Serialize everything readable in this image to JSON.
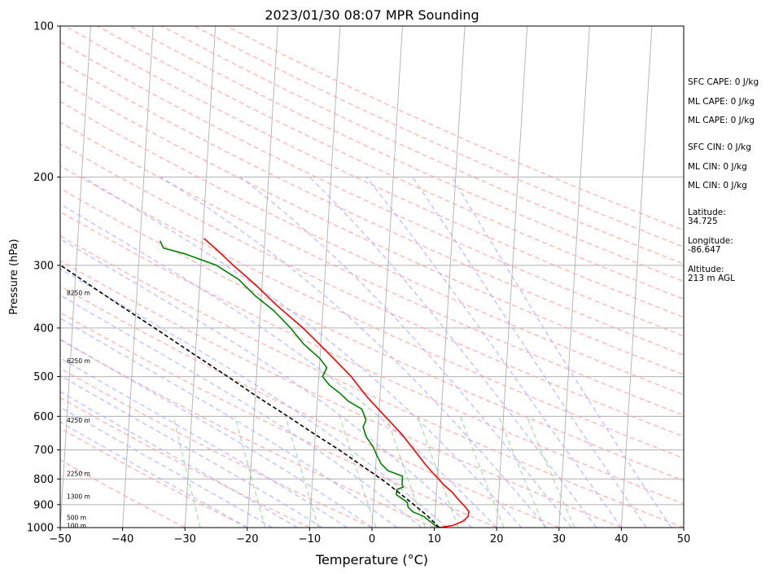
{
  "chart_data": {
    "type": "line",
    "subtype": "skew-T log-P sounding",
    "title": "2023/01/30 08:07 MPR Sounding",
    "xlabel": "Temperature (°C)",
    "ylabel": "Pressure (hPa)",
    "xlim": [
      -50,
      50
    ],
    "ylim": [
      1000,
      100
    ],
    "y_scale": "log",
    "grid": true,
    "x_ticks": [
      -50,
      -40,
      -30,
      -20,
      -10,
      0,
      10,
      20,
      30,
      40,
      50
    ],
    "y_ticks": [
      100,
      200,
      300,
      400,
      500,
      600,
      700,
      800,
      900,
      1000
    ],
    "height_labels": [
      {
        "label": "100 m",
        "p": 990
      },
      {
        "label": "500 m",
        "p": 955
      },
      {
        "label": "1300 m",
        "p": 866
      },
      {
        "label": "2250 m",
        "p": 780
      },
      {
        "label": "4250 m",
        "p": 610
      },
      {
        "label": "6250 m",
        "p": 465
      },
      {
        "label": "8250 m",
        "p": 340
      }
    ],
    "series": [
      {
        "kind": "temperature",
        "color": "#ff0000",
        "points": [
          [
            1000,
            10.8
          ],
          [
            990,
            13.0
          ],
          [
            970,
            14.6
          ],
          [
            950,
            15.3
          ],
          [
            930,
            15.4
          ],
          [
            910,
            14.8
          ],
          [
            880,
            13.6
          ],
          [
            850,
            12.5
          ],
          [
            820,
            11.0
          ],
          [
            800,
            10.2
          ],
          [
            780,
            9.3
          ],
          [
            750,
            8.0
          ],
          [
            700,
            6.0
          ],
          [
            650,
            3.8
          ],
          [
            600,
            1.0
          ],
          [
            550,
            -2.0
          ],
          [
            500,
            -4.8
          ],
          [
            450,
            -8.6
          ],
          [
            400,
            -13.0
          ],
          [
            360,
            -17.5
          ],
          [
            330,
            -20.8
          ],
          [
            300,
            -24.8
          ],
          [
            280,
            -27.5
          ],
          [
            265,
            -29.8
          ]
        ]
      },
      {
        "kind": "dewpoint",
        "color": "#008000",
        "points": [
          [
            1000,
            10.6
          ],
          [
            975,
            9.4
          ],
          [
            950,
            8.2
          ],
          [
            930,
            6.4
          ],
          [
            910,
            5.6
          ],
          [
            890,
            5.4
          ],
          [
            860,
            3.6
          ],
          [
            840,
            3.6
          ],
          [
            830,
            4.6
          ],
          [
            820,
            4.4
          ],
          [
            790,
            4.4
          ],
          [
            770,
            2.0
          ],
          [
            745,
            0.8
          ],
          [
            715,
            0.0
          ],
          [
            690,
            -0.6
          ],
          [
            660,
            -1.8
          ],
          [
            630,
            -2.4
          ],
          [
            610,
            -2.0
          ],
          [
            580,
            -2.8
          ],
          [
            560,
            -5.0
          ],
          [
            540,
            -6.4
          ],
          [
            520,
            -8.2
          ],
          [
            500,
            -9.4
          ],
          [
            480,
            -8.8
          ],
          [
            460,
            -10.0
          ],
          [
            430,
            -12.8
          ],
          [
            400,
            -15.0
          ],
          [
            370,
            -17.8
          ],
          [
            345,
            -21.0
          ],
          [
            320,
            -23.8
          ],
          [
            300,
            -27.5
          ],
          [
            285,
            -32.5
          ],
          [
            277,
            -36.2
          ],
          [
            268,
            -36.8
          ]
        ]
      },
      {
        "kind": "parcel",
        "color": "#000000",
        "dashed": true,
        "points": [
          [
            1000,
            10.8
          ],
          [
            950,
            8.9
          ],
          [
            900,
            6.5
          ],
          [
            850,
            3.9
          ],
          [
            800,
            1.0
          ],
          [
            750,
            -2.4
          ],
          [
            700,
            -6.0
          ],
          [
            650,
            -10.2
          ],
          [
            600,
            -14.6
          ],
          [
            550,
            -19.5
          ],
          [
            500,
            -24.6
          ],
          [
            450,
            -30.4
          ],
          [
            400,
            -36.8
          ],
          [
            350,
            -44.2
          ],
          [
            300,
            -52.5
          ],
          [
            268,
            -58.6
          ]
        ]
      }
    ],
    "background_lines": {
      "isotherm_color": "#b0b0b0",
      "dry_adiabat_color": "#ff9f9f",
      "moist_adiabat_color": "#a7a7ff",
      "mixing_ratio_color": "#8ed08e"
    }
  },
  "indices": {
    "sfc_cape": "SFC CAPE: 0 J/kg",
    "ml_cape_1": "ML CAPE: 0 J/kg",
    "ml_cape_2": "ML CAPE: 0 J/kg",
    "sfc_cin": "SFC CIN: 0 J/kg",
    "ml_cin_1": "ML CIN: 0 J/kg",
    "ml_cin_2": "ML CIN: 0 J/kg",
    "latitude_label": "Latitude:",
    "latitude_value": "34.725",
    "longitude_label": "Longitude:",
    "longitude_value": "-86.647",
    "altitude_label": "Altitude:",
    "altitude_value": "213 m AGL"
  }
}
